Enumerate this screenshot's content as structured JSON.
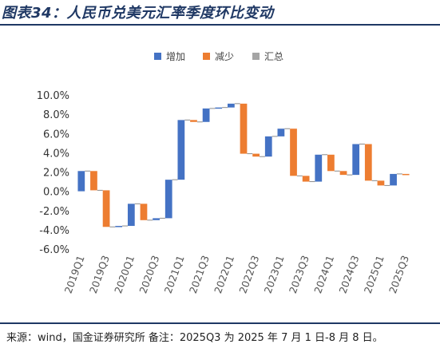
{
  "page": {
    "title": "图表34：人民币兑美元汇率季度环比变动",
    "source": "来源：wind，国金证券研究所 备注：2025Q3 为 2025 年 7 月 1 日-8 月 8 日。"
  },
  "chart_data": {
    "type": "bar",
    "subtype": "waterfall",
    "title": "",
    "xlabel": "",
    "ylabel": "",
    "ylim": [
      -6.0,
      10.0
    ],
    "yticks": [
      "10.0%",
      "8.0%",
      "6.0%",
      "4.0%",
      "2.0%",
      "0.0%",
      "-2.0%",
      "-4.0%",
      "-6.0%"
    ],
    "ytick_values": [
      10,
      8,
      6,
      4,
      2,
      0,
      -2,
      -4,
      -6
    ],
    "grid": false,
    "legend_position": "top",
    "legend": [
      "增加",
      "减少",
      "汇总"
    ],
    "colors": {
      "增加": "#4472c4",
      "减少": "#ed7d31",
      "汇总": "#a5a5a5"
    },
    "categories": [
      "2019Q1",
      "2019Q2",
      "2019Q3",
      "2019Q4",
      "2020Q1",
      "2020Q2",
      "2020Q3",
      "2020Q4",
      "2021Q1",
      "2021Q2",
      "2021Q3",
      "2021Q4",
      "2022Q1",
      "2022Q2",
      "2022Q3",
      "2022Q4",
      "2023Q1",
      "2023Q2",
      "2023Q3",
      "2023Q4",
      "2024Q1",
      "2024Q2",
      "2024Q3",
      "2024Q4",
      "2025Q1",
      "2025Q2",
      "2025Q3"
    ],
    "category_labels_shown": [
      "2019Q1",
      "2019Q3",
      "2020Q1",
      "2020Q3",
      "2021Q1",
      "2021Q3",
      "2022Q1",
      "2022Q3",
      "2023Q1",
      "2023Q3",
      "2024Q1",
      "2024Q3",
      "2025Q1",
      "2025Q3"
    ],
    "values": [
      2.1,
      -2.0,
      -3.8,
      0.1,
      2.3,
      -1.7,
      0.2,
      4.0,
      6.2,
      -0.2,
      1.4,
      0.1,
      0.4,
      -5.2,
      -0.3,
      2.1,
      0.8,
      -4.9,
      -0.6,
      2.8,
      -1.7,
      -0.4,
      3.2,
      -3.8,
      -0.5,
      1.2,
      -0.1
    ],
    "cumulative": [
      2.1,
      0.1,
      -3.7,
      -3.6,
      -1.3,
      -3.0,
      -2.8,
      1.2,
      7.4,
      7.2,
      8.6,
      8.7,
      9.1,
      3.9,
      3.6,
      5.7,
      6.5,
      1.6,
      1.0,
      3.8,
      2.1,
      1.7,
      4.9,
      1.1,
      0.6,
      1.8,
      1.7
    ]
  }
}
